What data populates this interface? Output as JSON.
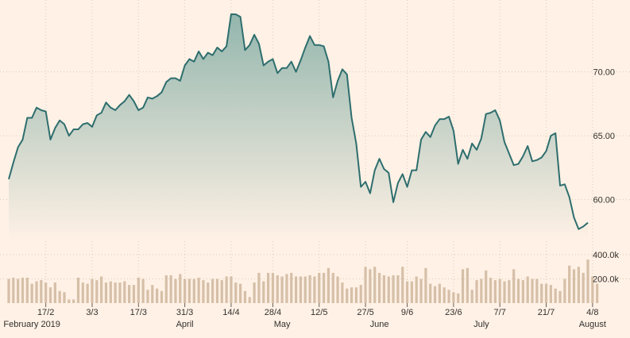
{
  "colors": {
    "background": "#fff1e5",
    "line": "#2e6e6e",
    "area_top": "#93b6ad",
    "area_bottom": "#fff1e5",
    "volume": "#d6bfa8",
    "grid": "#d9cbbd",
    "text": "#33302e"
  },
  "chart_data": [
    {
      "type": "area",
      "series": [
        {
          "values": [
            61.6,
            62.9,
            64.1,
            64.7,
            66.4,
            66.4,
            67.2,
            67.0,
            66.9,
            64.7,
            65.6,
            66.2,
            65.9,
            65.0,
            65.5,
            65.5,
            65.9,
            66.0,
            65.7,
            66.6,
            66.8,
            67.6,
            67.2,
            67.0,
            67.4,
            67.7,
            68.2,
            67.7,
            67.0,
            67.2,
            68.0,
            67.9,
            68.1,
            68.4,
            69.2,
            69.5,
            69.5,
            69.3,
            70.5,
            71.0,
            70.8,
            71.6,
            71.0,
            71.5,
            71.3,
            71.9,
            71.6,
            72.0,
            74.5,
            74.5,
            74.3,
            71.7,
            72.1,
            72.9,
            72.2,
            70.5,
            70.8,
            71.0,
            69.9,
            70.3,
            70.3,
            70.8,
            70.0,
            70.9,
            71.9,
            72.8,
            72.1,
            72.1,
            72.0,
            70.8,
            68.0,
            69.3,
            70.2,
            69.8,
            66.4,
            64.4,
            61.0,
            61.4,
            60.5,
            62.3,
            63.2,
            62.4,
            62.1,
            59.8,
            61.3,
            62.0,
            61.0,
            62.3,
            62.3,
            64.7,
            65.3,
            64.9,
            65.8,
            66.3,
            66.3,
            66.5,
            65.4,
            62.8,
            63.9,
            63.2,
            64.4,
            63.9,
            64.8,
            66.7,
            66.8,
            67.0,
            66.2,
            64.5,
            63.6,
            62.7,
            62.8,
            63.4,
            64.2,
            63.0,
            63.1,
            63.3,
            63.8,
            65.0,
            65.2,
            61.1,
            61.2,
            60.2,
            58.6,
            57.7,
            57.9,
            58.2
          ]
        }
      ],
      "ylim": [
        57,
        75
      ],
      "yticks": [
        60,
        65,
        70
      ],
      "ytick_labels": [
        "60.00",
        "65.00",
        "70.00"
      ],
      "grid": true
    },
    {
      "type": "bar",
      "series": [
        {
          "values": [
            200,
            210,
            200,
            210,
            210,
            160,
            180,
            190,
            170,
            130,
            170,
            100,
            90,
            30,
            30,
            210,
            170,
            160,
            200,
            190,
            220,
            170,
            180,
            170,
            170,
            180,
            150,
            150,
            210,
            200,
            110,
            150,
            120,
            100,
            230,
            230,
            200,
            240,
            200,
            200,
            200,
            210,
            190,
            170,
            200,
            200,
            190,
            220,
            220,
            170,
            160,
            100,
            50,
            170,
            250,
            180,
            250,
            250,
            230,
            220,
            240,
            250,
            220,
            220,
            220,
            230,
            220,
            250,
            250,
            290,
            250,
            220,
            170,
            120,
            130,
            130,
            150,
            300,
            280,
            300,
            250,
            230,
            220,
            230,
            230,
            300,
            180,
            180,
            220,
            200,
            290,
            160,
            140,
            160,
            130,
            110,
            90,
            80,
            280,
            290,
            110,
            190,
            200,
            270,
            210,
            190,
            200,
            180,
            190,
            280,
            200,
            190,
            220,
            200,
            200,
            160,
            160,
            150,
            120,
            100,
            200,
            310,
            280,
            300,
            250,
            360,
            220,
            160
          ]
        }
      ],
      "ylim": [
        0,
        420
      ],
      "yticks": [
        200,
        400
      ],
      "ytick_labels": [
        "200.0k",
        "400.0k"
      ]
    }
  ],
  "x_axis": {
    "ticks": [
      {
        "label": "17/2",
        "index": 8
      },
      {
        "label": "3/3",
        "index": 18
      },
      {
        "label": "17/3",
        "index": 28
      },
      {
        "label": "31/3",
        "index": 38
      },
      {
        "label": "14/4",
        "index": 48
      },
      {
        "label": "28/4",
        "index": 57
      },
      {
        "label": "12/5",
        "index": 67
      },
      {
        "label": "27/5",
        "index": 77
      },
      {
        "label": "9/6",
        "index": 86
      },
      {
        "label": "23/6",
        "index": 96
      },
      {
        "label": "7/7",
        "index": 106
      },
      {
        "label": "21/7",
        "index": 116
      },
      {
        "label": "4/8",
        "index": 126
      }
    ],
    "months": [
      {
        "label": "February 2019",
        "index": 5
      },
      {
        "label": "April",
        "index": 38
      },
      {
        "label": "May",
        "index": 59
      },
      {
        "label": "June",
        "index": 80
      },
      {
        "label": "July",
        "index": 102
      },
      {
        "label": "August",
        "index": 126
      }
    ]
  }
}
